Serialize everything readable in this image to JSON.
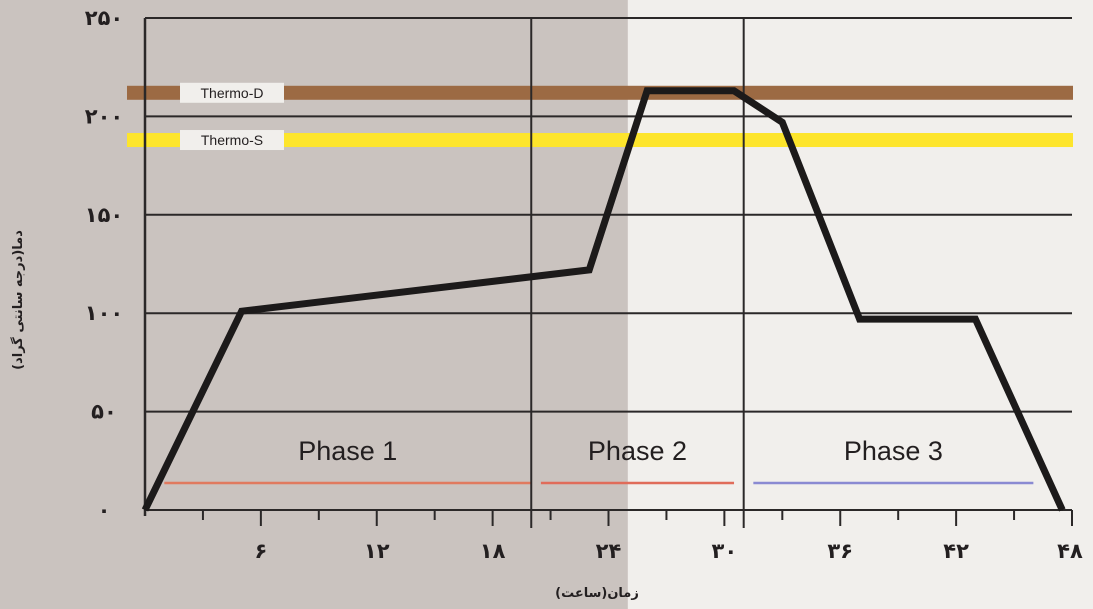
{
  "chart_data": {
    "type": "line",
    "xlabel": "زمان(ساعت)",
    "ylabel": "دما(درجه سانتی گراد)",
    "xlim": [
      0,
      48
    ],
    "ylim": [
      0,
      250
    ],
    "x_ticks": [
      {
        "value": 6,
        "label": "۶"
      },
      {
        "value": 12,
        "label": "۱۲"
      },
      {
        "value": 18,
        "label": "۱۸"
      },
      {
        "value": 24,
        "label": "۲۴"
      },
      {
        "value": 30,
        "label": "۳۰"
      },
      {
        "value": 36,
        "label": "۳۶"
      },
      {
        "value": 42,
        "label": "۴۲"
      },
      {
        "value": 48,
        "label": "۴۸"
      }
    ],
    "y_ticks": [
      {
        "value": 0,
        "label": "۰"
      },
      {
        "value": 50,
        "label": "۵۰"
      },
      {
        "value": 100,
        "label": "۱۰۰"
      },
      {
        "value": 150,
        "label": "۱۵۰"
      },
      {
        "value": 200,
        "label": "۲۰۰"
      },
      {
        "value": 250,
        "label": "۲۵۰"
      }
    ],
    "vertical_dividers": [
      20,
      31
    ],
    "shaded_region": {
      "from": 0,
      "to": 25,
      "color": "#cac3bf"
    },
    "series": [
      {
        "color": "#1c1a1a",
        "x": [
          0,
          5,
          23,
          26,
          30.5,
          33,
          37,
          43,
          47.5
        ],
        "y": [
          0,
          101,
          122,
          213,
          213,
          197,
          97,
          97,
          0
        ]
      }
    ],
    "thresholds": [
      {
        "name": "Thermo-D",
        "y": 212,
        "color": "#9c6a43"
      },
      {
        "name": "Thermo-S",
        "y": 188,
        "color": "#fde52c"
      }
    ],
    "phases": [
      {
        "name": "Phase 1",
        "from": 1,
        "to": 20,
        "color": "#e07a5f"
      },
      {
        "name": "Phase 2",
        "from": 20.5,
        "to": 30.5,
        "color": "#e06c5a"
      },
      {
        "name": "Phase 3",
        "from": 31.5,
        "to": 46,
        "color": "#8a8ad2"
      }
    ],
    "background": "#f1efec",
    "grid": true
  }
}
